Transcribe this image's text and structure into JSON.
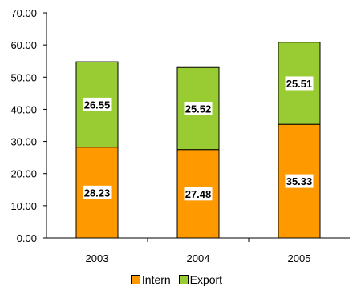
{
  "chart_data": {
    "type": "bar",
    "stacked": true,
    "categories": [
      "2003",
      "2004",
      "2005"
    ],
    "series": [
      {
        "name": "Intern",
        "values": [
          28.23,
          27.48,
          35.33
        ],
        "color": "#ff9900"
      },
      {
        "name": "Export",
        "values": [
          26.55,
          25.52,
          25.51
        ],
        "color": "#99cc33"
      }
    ],
    "y_ticks": [
      "0.00",
      "10.00",
      "20.00",
      "30.00",
      "40.00",
      "50.00",
      "60.00",
      "70.00"
    ],
    "ylim": [
      0,
      70
    ],
    "grid": false,
    "legend_position": "bottom",
    "data_labels": true
  }
}
